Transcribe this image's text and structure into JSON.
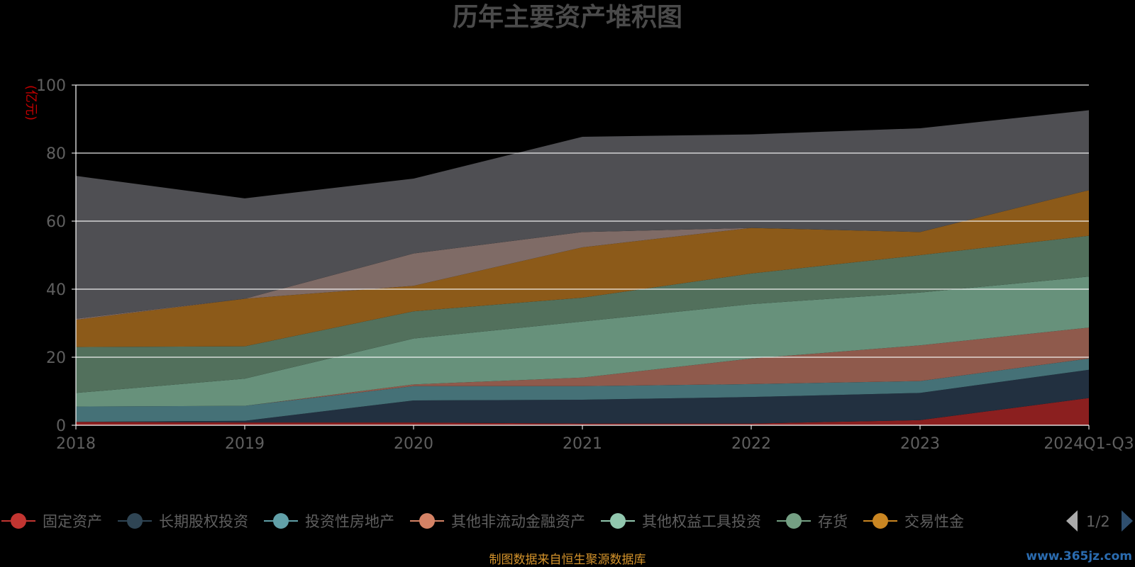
{
  "chart_data": {
    "type": "area",
    "title": "历年主要资产堆积图",
    "unit_label": "(亿元)",
    "categories": [
      "2018",
      "2019",
      "2020",
      "2021",
      "2022",
      "2023",
      "2024Q1-Q3"
    ],
    "y_ticks": [
      "0",
      "20",
      "40",
      "60",
      "80",
      "100"
    ],
    "ylim": [
      0,
      100
    ],
    "grid": true,
    "stacked": true,
    "series": [
      {
        "name": "固定资产",
        "color": "#8b1f1f",
        "legend_color": "#c23531",
        "values": [
          1.0,
          0.8,
          0.8,
          0.5,
          0.5,
          1.5,
          8.0
        ]
      },
      {
        "name": "长期股权投资",
        "color": "#223040",
        "legend_color": "#2f4554",
        "values": [
          0.0,
          0.5,
          6.5,
          7.0,
          7.8,
          8.0,
          8.3
        ]
      },
      {
        "name": "投资性房地产",
        "color": "#457177",
        "legend_color": "#61a0a8",
        "values": [
          4.5,
          4.4,
          4.2,
          4.0,
          3.8,
          3.5,
          3.3
        ]
      },
      {
        "name": "其他非流动金融资产",
        "color": "#8f5a4c",
        "legend_color": "#d48265",
        "values": [
          0.0,
          0.0,
          0.5,
          2.5,
          7.5,
          10.5,
          9.1
        ]
      },
      {
        "name": "其他权益工具投资",
        "color": "#67917b",
        "legend_color": "#91c7ae",
        "values": [
          4.0,
          8.0,
          13.5,
          16.5,
          16.0,
          15.5,
          15.0
        ]
      },
      {
        "name": "存货",
        "color": "#52705c",
        "legend_color": "#749f83",
        "values": [
          13.5,
          9.5,
          8.0,
          7.0,
          9.0,
          11.0,
          12.0
        ]
      },
      {
        "name": "交易性金",
        "color": "#8c5a19",
        "legend_color": "#ca8622",
        "values": [
          8.0,
          14.0,
          7.5,
          14.8,
          13.4,
          6.8,
          13.4
        ]
      },
      {
        "name": "",
        "color": "#7f6b66",
        "values": [
          0.3,
          0.0,
          9.5,
          4.5,
          0.0,
          0.0,
          0.0
        ]
      },
      {
        "name": "",
        "color": "#4f4f53",
        "values": [
          42.0,
          29.5,
          22.0,
          28.0,
          27.5,
          30.5,
          23.5
        ]
      }
    ],
    "legend": {
      "position": "bottom",
      "page": "1/2"
    }
  },
  "source_note": "制图数据来自恒生聚源数据库",
  "watermark": "www.365jz.com",
  "legend_prev_icon": "triangle-left-icon",
  "legend_next_icon": "triangle-right-icon"
}
